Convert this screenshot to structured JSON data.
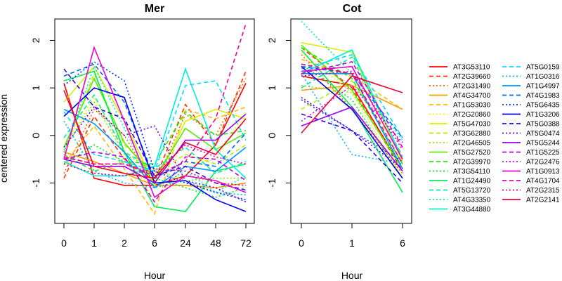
{
  "chart_data": {
    "type": "line",
    "ylabel": "centered expression",
    "xlabel": "Hour",
    "ylim": [
      -1.85,
      2.45
    ],
    "yticks": [
      -1,
      0,
      1,
      2
    ],
    "grid": false,
    "legend_position": "right",
    "series_style": [
      {
        "name": "AT3G53110",
        "color": "#ff0000",
        "dash": "solid"
      },
      {
        "name": "AT2G39660",
        "color": "#ff3300",
        "dash": "dashed"
      },
      {
        "name": "AT2G31490",
        "color": "#ff6600",
        "dash": "dotted"
      },
      {
        "name": "AT4G34700",
        "color": "#ff9900",
        "dash": "solid"
      },
      {
        "name": "AT1G53030",
        "color": "#ffbb00",
        "dash": "dashed"
      },
      {
        "name": "AT2G20860",
        "color": "#ffee00",
        "dash": "dotted"
      },
      {
        "name": "AT5G47030",
        "color": "#ddee00",
        "dash": "solid"
      },
      {
        "name": "AT3G62880",
        "color": "#bbee00",
        "dash": "dashed"
      },
      {
        "name": "AT2G46505",
        "color": "#88ee00",
        "dash": "dotted"
      },
      {
        "name": "AT5G27520",
        "color": "#55ee00",
        "dash": "solid"
      },
      {
        "name": "AT2G39970",
        "color": "#22ee00",
        "dash": "dashed"
      },
      {
        "name": "AT3G54110",
        "color": "#00ee22",
        "dash": "dotted"
      },
      {
        "name": "AT1G24490",
        "color": "#00ee55",
        "dash": "solid"
      },
      {
        "name": "AT5G13720",
        "color": "#00ee99",
        "dash": "dashed"
      },
      {
        "name": "AT4G33350",
        "color": "#00eebb",
        "dash": "dotted"
      },
      {
        "name": "AT3G44880",
        "color": "#00eedd",
        "dash": "solid"
      },
      {
        "name": "AT5G0159",
        "color": "#00ddff",
        "dash": "dashed"
      },
      {
        "name": "AT1G0316",
        "color": "#00bbff",
        "dash": "dotted"
      },
      {
        "name": "AT1G4997",
        "color": "#0099ff",
        "dash": "solid"
      },
      {
        "name": "AT4G1983",
        "color": "#0066ff",
        "dash": "dashed"
      },
      {
        "name": "AT5G6435",
        "color": "#0033ff",
        "dash": "dotted"
      },
      {
        "name": "AT1G3206",
        "color": "#0000ee",
        "dash": "solid"
      },
      {
        "name": "AT5G0388",
        "color": "#3300ee",
        "dash": "dashed"
      },
      {
        "name": "AT5G0474",
        "color": "#6600ee",
        "dash": "dotted"
      },
      {
        "name": "AT5G5244",
        "color": "#9900ee",
        "dash": "solid"
      },
      {
        "name": "AT1G5225",
        "color": "#bb00ee",
        "dash": "dashed"
      },
      {
        "name": "AT2G2476",
        "color": "#dd00ee",
        "dash": "dotted"
      },
      {
        "name": "AT1G0913",
        "color": "#ee00cc",
        "dash": "solid"
      },
      {
        "name": "AT4G1704",
        "color": "#ee0099",
        "dash": "dashed"
      },
      {
        "name": "AT2G2315",
        "color": "#ee0066",
        "dash": "dotted"
      },
      {
        "name": "AT2G2141",
        "color": "#ee0033",
        "dash": "solid"
      }
    ],
    "panels": [
      {
        "title": "Mer",
        "categories": [
          "0",
          "1",
          "2",
          "6",
          "24",
          "48",
          "72"
        ],
        "series": [
          [
            1.1,
            -0.9,
            -1.05,
            -1.05,
            -0.85,
            -0.2,
            1.1
          ],
          [
            -0.9,
            0.4,
            -0.5,
            -0.95,
            0.65,
            -0.2,
            1.35
          ],
          [
            -0.8,
            0.55,
            0.0,
            -1.05,
            0.45,
            0.0,
            1.2
          ],
          [
            -0.35,
            -0.55,
            -0.8,
            -1.05,
            -1.05,
            -1.1,
            -1.0
          ],
          [
            -0.6,
            0.2,
            -0.7,
            -1.65,
            0.55,
            0.35,
            0.6
          ],
          [
            -0.25,
            0.8,
            -0.3,
            -1.4,
            -0.6,
            -0.5,
            0.5
          ],
          [
            0.7,
            1.45,
            0.3,
            -1.05,
            0.3,
            0.55,
            0.35
          ],
          [
            -0.35,
            1.3,
            -0.2,
            -0.8,
            -0.4,
            -0.6,
            -0.2
          ],
          [
            -0.3,
            0.7,
            -0.4,
            -0.7,
            -0.95,
            -0.9,
            -0.9
          ],
          [
            -0.25,
            1.2,
            -0.15,
            -0.9,
            0.15,
            -0.3,
            0.05
          ],
          [
            -0.4,
            -0.75,
            -0.55,
            -0.6,
            0.5,
            0.0,
            0.1
          ],
          [
            -0.6,
            -0.2,
            -0.55,
            -0.9,
            -1.1,
            -1.3,
            -1.1
          ],
          [
            1.15,
            1.35,
            -0.35,
            -1.5,
            -1.6,
            -0.75,
            -0.6
          ],
          [
            -0.05,
            0.85,
            -0.35,
            -0.7,
            -0.25,
            -0.8,
            -0.55
          ],
          [
            -0.35,
            1.45,
            0.15,
            -1.1,
            -0.75,
            -1.2,
            -0.85
          ],
          [
            -0.55,
            -0.85,
            -0.85,
            -0.65,
            1.4,
            -0.3,
            -0.9
          ],
          [
            0.5,
            -0.4,
            -0.55,
            -0.75,
            1.05,
            1.15,
            -0.1
          ],
          [
            0.3,
            -0.75,
            -1.0,
            -1.1,
            -0.95,
            -1.2,
            -1.25
          ],
          [
            0.55,
            0.25,
            -0.35,
            -1.1,
            -0.65,
            -0.75,
            -0.25
          ],
          [
            1.25,
            1.5,
            0.7,
            -0.9,
            -0.55,
            -0.65,
            0.05
          ],
          [
            1.05,
            1.55,
            1.15,
            -0.75,
            -1.0,
            -1.2,
            -1.35
          ],
          [
            0.4,
            1.0,
            0.8,
            -1.0,
            -0.95,
            -1.35,
            -1.6
          ],
          [
            1.4,
            0.6,
            0.35,
            -0.85,
            -0.65,
            -1.0,
            -1.15
          ],
          [
            -0.25,
            0.6,
            0.0,
            0.2,
            -0.95,
            -1.1,
            -1.4
          ],
          [
            -0.5,
            -0.65,
            -0.65,
            -1.0,
            -0.1,
            -0.1,
            0.45
          ],
          [
            -0.5,
            -0.35,
            -0.45,
            -1.4,
            -0.45,
            -0.5,
            -0.95
          ],
          [
            -0.45,
            -0.6,
            -0.6,
            -0.8,
            -0.2,
            -0.45,
            -0.6
          ],
          [
            -0.5,
            1.85,
            0.3,
            -1.3,
            -0.85,
            -0.95,
            -1.2
          ],
          [
            -0.45,
            -0.6,
            -0.6,
            -0.85,
            -0.55,
            0.35,
            2.35
          ],
          [
            -0.6,
            -0.8,
            -0.85,
            -0.7,
            -0.75,
            -1.0,
            -1.05
          ],
          [
            0.95,
            -0.65,
            -0.8,
            -0.9,
            -0.15,
            -0.4,
            0.35
          ]
        ]
      },
      {
        "title": "Cot",
        "categories": [
          "0",
          "1",
          "6"
        ],
        "series": [
          [
            1.25,
            1.05,
            -0.7
          ],
          [
            1.85,
            1.0,
            -0.75
          ],
          [
            1.7,
            0.55,
            -0.8
          ],
          [
            0.95,
            1.05,
            0.55
          ],
          [
            1.6,
            1.25,
            0.55
          ],
          [
            1.75,
            0.9,
            -0.9
          ],
          [
            1.95,
            1.75,
            -0.55
          ],
          [
            0.55,
            1.15,
            -0.4
          ],
          [
            1.05,
            0.9,
            -0.65
          ],
          [
            1.9,
            0.95,
            -0.7
          ],
          [
            1.85,
            1.2,
            -0.6
          ],
          [
            1.5,
            0.75,
            -0.9
          ],
          [
            1.8,
            0.6,
            -1.2
          ],
          [
            1.0,
            1.65,
            -0.45
          ],
          [
            2.4,
            1.3,
            -0.1
          ],
          [
            1.3,
            1.8,
            -0.5
          ],
          [
            1.4,
            1.7,
            -0.05
          ],
          [
            1.3,
            -0.4,
            -0.6
          ],
          [
            1.3,
            1.3,
            -0.7
          ],
          [
            1.45,
            1.3,
            -0.05
          ],
          [
            0.75,
            0.1,
            -0.55
          ],
          [
            1.45,
            0.55,
            -0.9
          ],
          [
            0.45,
            0.1,
            -1.0
          ],
          [
            0.8,
            0.1,
            -0.7
          ],
          [
            0.2,
            0.6,
            -0.75
          ],
          [
            1.3,
            1.55,
            -0.25
          ],
          [
            0.3,
            1.05,
            -0.15
          ],
          [
            1.35,
            1.45,
            -0.5
          ],
          [
            1.5,
            1.3,
            -0.6
          ],
          [
            1.25,
            1.35,
            -0.3
          ],
          [
            0.05,
            1.25,
            0.9
          ]
        ]
      }
    ]
  }
}
